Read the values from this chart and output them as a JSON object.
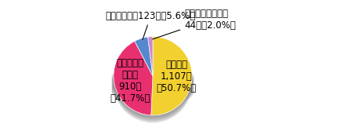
{
  "slices": [
    {
      "label": "路上強盗\n1,107件\n（50.7%）",
      "value": 1107,
      "color": "#F2D030",
      "pct": 50.7
    },
    {
      "label": "非侵入強盗\nその他\n910件\n（41.7%）",
      "value": 910,
      "color": "#E83070",
      "pct": 41.7
    },
    {
      "label": "タクシー強盗123件（5.6%）",
      "value": 123,
      "color": "#5588CC",
      "pct": 5.6
    },
    {
      "label": "その他自動車強盗\n44件（2.0%）",
      "value": 44,
      "color": "#CC88CC",
      "pct": 2.0
    }
  ],
  "background_color": "#FFFFFF",
  "fontsize": 8.5,
  "startangle": 90,
  "shadow_color": "#C8A000",
  "shadow_depth": 0.12
}
